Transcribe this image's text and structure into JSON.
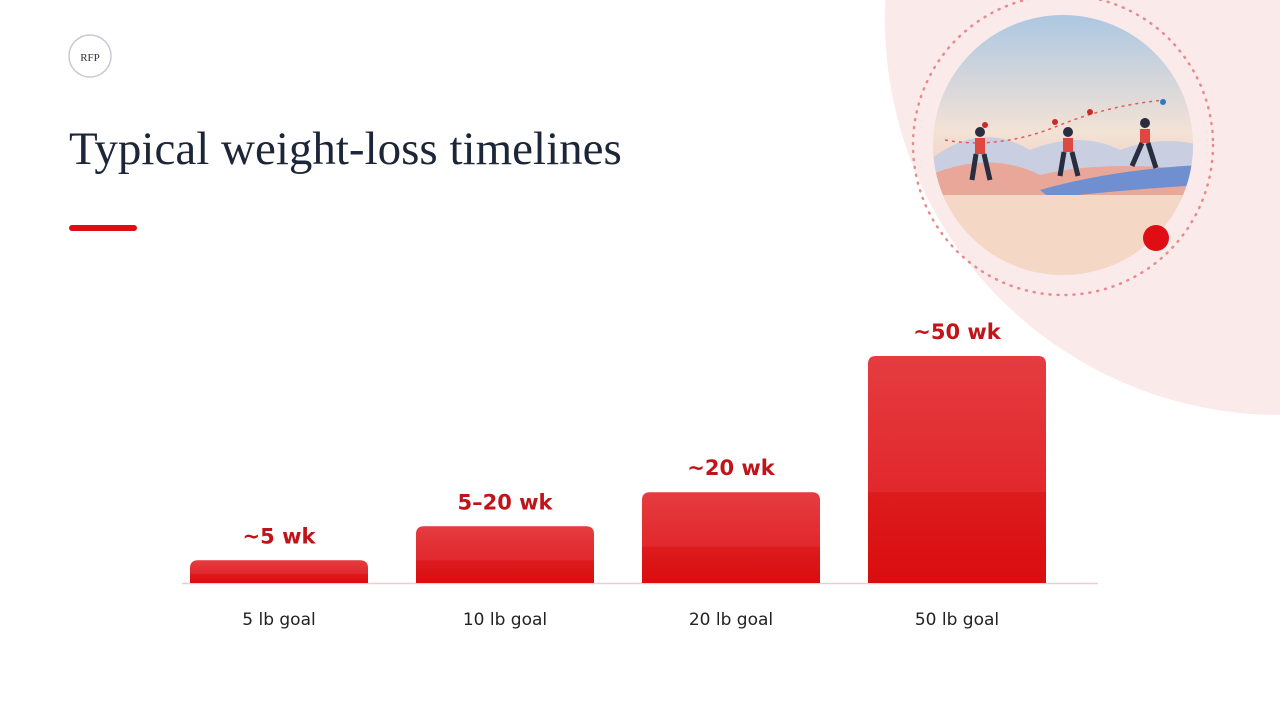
{
  "logo": "RFP",
  "chart_data": {
    "type": "bar",
    "title": "Typical weight-loss timelines",
    "categories": [
      "5 lb goal",
      "10 lb goal",
      "20 lb goal",
      "50 lb goal"
    ],
    "values": [
      5,
      12.5,
      20,
      50
    ],
    "value_labels": [
      "~5 wk",
      "5–20 wk",
      "~20 wk",
      "~50 wk"
    ],
    "color": "#e01a1f"
  }
}
